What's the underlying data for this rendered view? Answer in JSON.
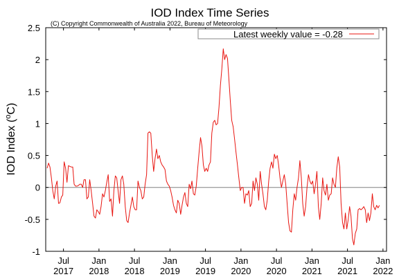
{
  "chart_data": {
    "type": "line",
    "title": "IOD Index Time Series",
    "subtitle": "(C) Copyright Commonwealth of Australia 2022, Bureau of Meteorology",
    "xlabel": "",
    "ylabel": "IOD Index (°C)",
    "ylabel_main": "IOD Index (",
    "ylabel_sup": "o",
    "ylabel_unit": "C)",
    "xlim": [
      2017.25,
      2022.05
    ],
    "ylim": [
      -1,
      2.5
    ],
    "yticks": [
      -1,
      -0.5,
      0,
      0.5,
      1,
      1.5,
      2,
      2.5
    ],
    "ytick_labels": [
      "-1",
      "-0.5",
      "0",
      "0.5",
      "1",
      "1.5",
      "2",
      "2.5"
    ],
    "xticks": [
      {
        "x": 2017.5,
        "month": "Jul",
        "year": "2017"
      },
      {
        "x": 2018.0,
        "month": "Jan",
        "year": "2018"
      },
      {
        "x": 2018.5,
        "month": "Jul",
        "year": "2018"
      },
      {
        "x": 2019.0,
        "month": "Jan",
        "year": "2019"
      },
      {
        "x": 2019.5,
        "month": "Jul",
        "year": "2019"
      },
      {
        "x": 2020.0,
        "month": "Jan",
        "year": "2020"
      },
      {
        "x": 2020.5,
        "month": "Jul",
        "year": "2020"
      },
      {
        "x": 2021.0,
        "month": "Jan",
        "year": "2021"
      },
      {
        "x": 2021.5,
        "month": "Jul",
        "year": "2021"
      },
      {
        "x": 2022.0,
        "month": "Jan",
        "year": "2022"
      }
    ],
    "zero_line": true,
    "legend_position": "top-right",
    "series": [
      {
        "name": "Latest weekly value = -0.28",
        "color": "#e8140f",
        "points": [
          [
            2017.27,
            0.3
          ],
          [
            2017.29,
            0.38
          ],
          [
            2017.31,
            0.32
          ],
          [
            2017.33,
            0.15
          ],
          [
            2017.35,
            -0.05
          ],
          [
            2017.37,
            -0.18
          ],
          [
            2017.39,
            0.02
          ],
          [
            2017.41,
            0.1
          ],
          [
            2017.43,
            -0.25
          ],
          [
            2017.45,
            -0.24
          ],
          [
            2017.47,
            -0.15
          ],
          [
            2017.49,
            -0.12
          ],
          [
            2017.51,
            0.4
          ],
          [
            2017.53,
            0.3
          ],
          [
            2017.55,
            0.08
          ],
          [
            2017.57,
            0.34
          ],
          [
            2017.59,
            0.33
          ],
          [
            2017.61,
            0.32
          ],
          [
            2017.63,
            0.32
          ],
          [
            2017.65,
            0.05
          ],
          [
            2017.67,
            0.02
          ],
          [
            2017.69,
            0.02
          ],
          [
            2017.71,
            0.03
          ],
          [
            2017.73,
            0.05
          ],
          [
            2017.75,
            0.05
          ],
          [
            2017.77,
            0.0
          ],
          [
            2017.79,
            0.12
          ],
          [
            2017.81,
            0.12
          ],
          [
            2017.83,
            -0.18
          ],
          [
            2017.85,
            -0.15
          ],
          [
            2017.87,
            0.12
          ],
          [
            2017.89,
            -0.05
          ],
          [
            2017.91,
            -0.25
          ],
          [
            2017.93,
            -0.45
          ],
          [
            2017.95,
            -0.48
          ],
          [
            2017.97,
            -0.35
          ],
          [
            2017.99,
            -0.38
          ],
          [
            2018.01,
            -0.42
          ],
          [
            2018.03,
            -0.3
          ],
          [
            2018.05,
            -0.1
          ],
          [
            2018.07,
            -0.15
          ],
          [
            2018.09,
            -0.05
          ],
          [
            2018.11,
            0.08
          ],
          [
            2018.13,
            0.2
          ],
          [
            2018.15,
            -0.22
          ],
          [
            2018.17,
            -0.18
          ],
          [
            2018.19,
            -0.45
          ],
          [
            2018.21,
            -0.05
          ],
          [
            2018.23,
            0.18
          ],
          [
            2018.25,
            0.15
          ],
          [
            2018.27,
            -0.05
          ],
          [
            2018.29,
            -0.25
          ],
          [
            2018.31,
            0.12
          ],
          [
            2018.33,
            0.18
          ],
          [
            2018.35,
            0.05
          ],
          [
            2018.37,
            -0.3
          ],
          [
            2018.39,
            -0.52
          ],
          [
            2018.41,
            -0.55
          ],
          [
            2018.43,
            -0.4
          ],
          [
            2018.45,
            -0.28
          ],
          [
            2018.47,
            -0.15
          ],
          [
            2018.49,
            -0.3
          ],
          [
            2018.51,
            -0.35
          ],
          [
            2018.53,
            -0.35
          ],
          [
            2018.55,
            0.1
          ],
          [
            2018.57,
            0.0
          ],
          [
            2018.59,
            -0.05
          ],
          [
            2018.61,
            -0.18
          ],
          [
            2018.63,
            -0.15
          ],
          [
            2018.65,
            0.05
          ],
          [
            2018.67,
            0.2
          ],
          [
            2018.69,
            0.85
          ],
          [
            2018.71,
            0.87
          ],
          [
            2018.73,
            0.85
          ],
          [
            2018.75,
            0.5
          ],
          [
            2018.77,
            0.25
          ],
          [
            2018.79,
            0.45
          ],
          [
            2018.81,
            0.6
          ],
          [
            2018.83,
            0.45
          ],
          [
            2018.85,
            0.5
          ],
          [
            2018.87,
            0.4
          ],
          [
            2018.89,
            0.35
          ],
          [
            2018.91,
            0.32
          ],
          [
            2018.93,
            0.28
          ],
          [
            2018.95,
            0.1
          ],
          [
            2018.97,
            0.05
          ],
          [
            2018.99,
            0.02
          ],
          [
            2019.01,
            -0.05
          ],
          [
            2019.03,
            -0.15
          ],
          [
            2019.05,
            -0.28
          ],
          [
            2019.07,
            -0.35
          ],
          [
            2019.09,
            -0.4
          ],
          [
            2019.11,
            -0.2
          ],
          [
            2019.13,
            -0.25
          ],
          [
            2019.15,
            -0.42
          ],
          [
            2019.17,
            -0.28
          ],
          [
            2019.19,
            -0.15
          ],
          [
            2019.21,
            -0.08
          ],
          [
            2019.23,
            -0.25
          ],
          [
            2019.25,
            -0.3
          ],
          [
            2019.27,
            0.05
          ],
          [
            2019.29,
            -0.02
          ],
          [
            2019.31,
            0.1
          ],
          [
            2019.33,
            -0.1
          ],
          [
            2019.35,
            -0.12
          ],
          [
            2019.37,
            0.02
          ],
          [
            2019.39,
            0.3
          ],
          [
            2019.41,
            0.55
          ],
          [
            2019.43,
            0.78
          ],
          [
            2019.45,
            0.65
          ],
          [
            2019.47,
            0.35
          ],
          [
            2019.49,
            0.25
          ],
          [
            2019.51,
            0.3
          ],
          [
            2019.53,
            0.25
          ],
          [
            2019.55,
            0.35
          ],
          [
            2019.57,
            0.4
          ],
          [
            2019.59,
            0.85
          ],
          [
            2019.61,
            1.02
          ],
          [
            2019.63,
            1.05
          ],
          [
            2019.65,
            0.98
          ],
          [
            2019.67,
            1.0
          ],
          [
            2019.69,
            1.25
          ],
          [
            2019.71,
            1.6
          ],
          [
            2019.73,
            1.85
          ],
          [
            2019.75,
            2.17
          ],
          [
            2019.77,
            2.0
          ],
          [
            2019.79,
            2.08
          ],
          [
            2019.81,
            2.02
          ],
          [
            2019.83,
            1.7
          ],
          [
            2019.85,
            1.35
          ],
          [
            2019.87,
            1.05
          ],
          [
            2019.89,
            0.95
          ],
          [
            2019.91,
            0.75
          ],
          [
            2019.93,
            0.55
          ],
          [
            2019.95,
            0.35
          ],
          [
            2019.97,
            0.15
          ],
          [
            2019.99,
            -0.05
          ],
          [
            2020.01,
            0.0
          ],
          [
            2020.03,
            0.0
          ],
          [
            2020.05,
            -0.25
          ],
          [
            2020.07,
            -0.1
          ],
          [
            2020.09,
            -0.12
          ],
          [
            2020.11,
            -0.05
          ],
          [
            2020.13,
            -0.3
          ],
          [
            2020.15,
            -0.25
          ],
          [
            2020.17,
            0.1
          ],
          [
            2020.19,
            -0.05
          ],
          [
            2020.21,
            0.15
          ],
          [
            2020.23,
            0.05
          ],
          [
            2020.25,
            -0.2
          ],
          [
            2020.27,
            0.25
          ],
          [
            2020.29,
            0.05
          ],
          [
            2020.31,
            -0.1
          ],
          [
            2020.33,
            -0.3
          ],
          [
            2020.35,
            -0.35
          ],
          [
            2020.37,
            -0.2
          ],
          [
            2020.39,
            0.1
          ],
          [
            2020.41,
            0.3
          ],
          [
            2020.43,
            0.4
          ],
          [
            2020.45,
            0.3
          ],
          [
            2020.47,
            0.52
          ],
          [
            2020.49,
            0.45
          ],
          [
            2020.51,
            0.5
          ],
          [
            2020.53,
            0.35
          ],
          [
            2020.55,
            0.15
          ],
          [
            2020.57,
            0.0
          ],
          [
            2020.59,
            0.1
          ],
          [
            2020.61,
            0.2
          ],
          [
            2020.63,
            0.05
          ],
          [
            2020.65,
            -0.25
          ],
          [
            2020.67,
            -0.55
          ],
          [
            2020.69,
            -0.68
          ],
          [
            2020.71,
            -0.7
          ],
          [
            2020.73,
            -0.35
          ],
          [
            2020.75,
            -0.1
          ],
          [
            2020.77,
            -0.2
          ],
          [
            2020.79,
            0.0
          ],
          [
            2020.81,
            0.15
          ],
          [
            2020.83,
            0.42
          ],
          [
            2020.85,
            0.15
          ],
          [
            2020.87,
            -0.25
          ],
          [
            2020.89,
            -0.45
          ],
          [
            2020.91,
            -0.3
          ],
          [
            2020.93,
            0.0
          ],
          [
            2020.95,
            0.2
          ],
          [
            2020.97,
            0.1
          ],
          [
            2020.99,
            0.05
          ],
          [
            2021.01,
            0.1
          ],
          [
            2021.03,
            -0.1
          ],
          [
            2021.05,
            0.05
          ],
          [
            2021.07,
            0.25
          ],
          [
            2021.09,
            -0.3
          ],
          [
            2021.11,
            -0.5
          ],
          [
            2021.13,
            -0.25
          ],
          [
            2021.15,
            0.15
          ],
          [
            2021.17,
            -0.05
          ],
          [
            2021.19,
            -0.12
          ],
          [
            2021.21,
            0.05
          ],
          [
            2021.23,
            -0.2
          ],
          [
            2021.25,
            -0.12
          ],
          [
            2021.27,
            -0.1
          ],
          [
            2021.29,
            0.15
          ],
          [
            2021.31,
            0.05
          ],
          [
            2021.33,
            0.0
          ],
          [
            2021.35,
            0.3
          ],
          [
            2021.37,
            0.48
          ],
          [
            2021.39,
            0.32
          ],
          [
            2021.41,
            -0.25
          ],
          [
            2021.43,
            -0.55
          ],
          [
            2021.45,
            -0.65
          ],
          [
            2021.47,
            -0.4
          ],
          [
            2021.49,
            -0.65
          ],
          [
            2021.51,
            -0.5
          ],
          [
            2021.53,
            -0.3
          ],
          [
            2021.55,
            -0.45
          ],
          [
            2021.57,
            -0.8
          ],
          [
            2021.59,
            -0.9
          ],
          [
            2021.61,
            -0.72
          ],
          [
            2021.63,
            -0.65
          ],
          [
            2021.65,
            -0.35
          ],
          [
            2021.67,
            -0.33
          ],
          [
            2021.69,
            -0.35
          ],
          [
            2021.71,
            -0.33
          ],
          [
            2021.73,
            -0.3
          ],
          [
            2021.75,
            -0.35
          ],
          [
            2021.77,
            -0.55
          ],
          [
            2021.79,
            -0.4
          ],
          [
            2021.81,
            -0.52
          ],
          [
            2021.83,
            -0.4
          ],
          [
            2021.85,
            -0.1
          ],
          [
            2021.87,
            -0.3
          ],
          [
            2021.89,
            -0.35
          ],
          [
            2021.91,
            -0.28
          ],
          [
            2021.93,
            -0.32
          ],
          [
            2021.95,
            -0.28
          ]
        ]
      }
    ]
  }
}
